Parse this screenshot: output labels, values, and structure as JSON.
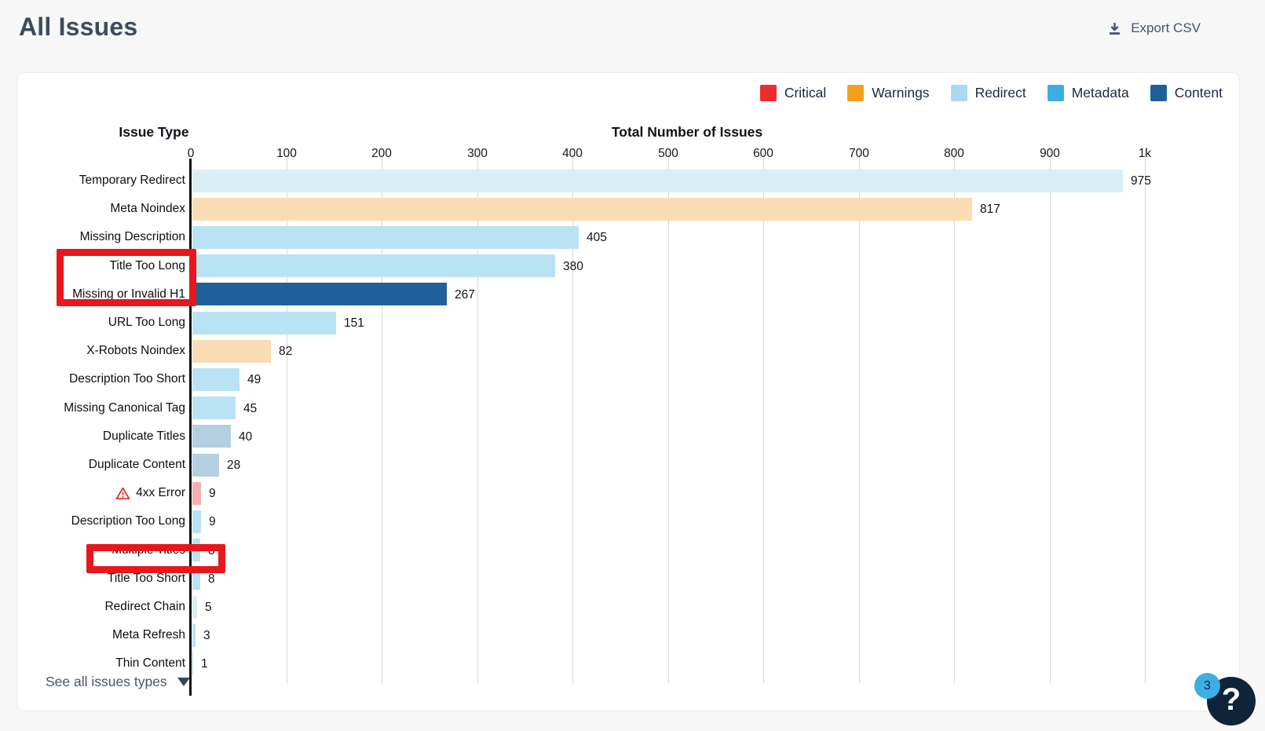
{
  "page": {
    "title": "All Issues"
  },
  "toolbar": {
    "export_label": "Export CSV"
  },
  "footer": {
    "see_all_label": "See all issues types"
  },
  "help": {
    "icon": "?",
    "badge_count": "3"
  },
  "chart_data": {
    "type": "bar",
    "orientation": "horizontal",
    "ylabel": "Issue Type",
    "xlabel": "Total Number of Issues",
    "xlim": [
      0,
      1000
    ],
    "xticks": [
      "0",
      "100",
      "200",
      "300",
      "400",
      "500",
      "600",
      "700",
      "800",
      "900",
      "1k"
    ],
    "grid": "vertical",
    "legend_position": "top-right",
    "legend": [
      {
        "label": "Critical",
        "color": "#ee2c2f"
      },
      {
        "label": "Warnings",
        "color": "#f4a01d"
      },
      {
        "label": "Redirect",
        "color": "#a8d9ef"
      },
      {
        "label": "Metadata",
        "color": "#3daee3"
      },
      {
        "label": "Content",
        "color": "#20609a"
      }
    ],
    "categories": [
      "Temporary Redirect",
      "Meta Noindex",
      "Missing Description",
      "Title Too Long",
      "Missing or Invalid H1",
      "URL Too Long",
      "X-Robots Noindex",
      "Description Too Short",
      "Missing Canonical Tag",
      "Duplicate Titles",
      "Duplicate Content",
      "4xx Error",
      "Description Too Long",
      "Multiple Titles",
      "Title Too Short",
      "Redirect Chain",
      "Meta Refresh",
      "Thin Content"
    ],
    "values": [
      975,
      817,
      405,
      380,
      267,
      151,
      82,
      49,
      45,
      40,
      28,
      9,
      9,
      8,
      8,
      5,
      3,
      1
    ],
    "rows": [
      {
        "label": "Temporary Redirect",
        "value": 975,
        "display": "975",
        "color": "#daeef8",
        "category": "Redirect",
        "warning_icon": false
      },
      {
        "label": "Meta Noindex",
        "value": 817,
        "display": "817",
        "color": "#fadcb4",
        "category": "Warnings",
        "warning_icon": false
      },
      {
        "label": "Missing Description",
        "value": 405,
        "display": "405",
        "color": "#b9e2f5",
        "category": "Metadata",
        "warning_icon": false
      },
      {
        "label": "Title Too Long",
        "value": 380,
        "display": "380",
        "color": "#b9e2f5",
        "category": "Metadata",
        "warning_icon": false
      },
      {
        "label": "Missing or Invalid H1",
        "value": 267,
        "display": "267",
        "color": "#20609a",
        "category": "Content",
        "warning_icon": false
      },
      {
        "label": "URL Too Long",
        "value": 151,
        "display": "151",
        "color": "#b9e2f5",
        "category": "Metadata",
        "warning_icon": false
      },
      {
        "label": "X-Robots Noindex",
        "value": 82,
        "display": "82",
        "color": "#fadcb4",
        "category": "Warnings",
        "warning_icon": false
      },
      {
        "label": "Description Too Short",
        "value": 49,
        "display": "49",
        "color": "#b9e2f5",
        "category": "Metadata",
        "warning_icon": false
      },
      {
        "label": "Missing Canonical Tag",
        "value": 45,
        "display": "45",
        "color": "#b9e2f5",
        "category": "Metadata",
        "warning_icon": false
      },
      {
        "label": "Duplicate Titles",
        "value": 40,
        "display": "40",
        "color": "#b3cfe0",
        "category": "Content",
        "warning_icon": false
      },
      {
        "label": "Duplicate Content",
        "value": 28,
        "display": "28",
        "color": "#b3cfe0",
        "category": "Content",
        "warning_icon": false
      },
      {
        "label": "4xx Error",
        "value": 9,
        "display": "9",
        "color": "#f3afb3",
        "category": "Critical",
        "warning_icon": true
      },
      {
        "label": "Description Too Long",
        "value": 9,
        "display": "9",
        "color": "#b9e2f5",
        "category": "Metadata",
        "warning_icon": false
      },
      {
        "label": "Multiple Titles",
        "value": 8,
        "display": "8",
        "color": "#b9e2f5",
        "category": "Metadata",
        "warning_icon": false
      },
      {
        "label": "Title Too Short",
        "value": 8,
        "display": "8",
        "color": "#b9e2f5",
        "category": "Metadata",
        "warning_icon": false
      },
      {
        "label": "Redirect Chain",
        "value": 5,
        "display": "5",
        "color": "#daeef8",
        "category": "Redirect",
        "warning_icon": false
      },
      {
        "label": "Meta Refresh",
        "value": 3,
        "display": "3",
        "color": "#b9e2f5",
        "category": "Redirect",
        "warning_icon": false
      },
      {
        "label": "Thin Content",
        "value": 1,
        "display": "1",
        "color": "#b3cfe0",
        "category": "Content",
        "warning_icon": false
      }
    ],
    "annotations": [
      {
        "type": "highlight-box",
        "around": [
          "Title Too Long",
          "Missing or Invalid H1"
        ],
        "color": "#e8161d"
      },
      {
        "type": "highlight-box",
        "around": [
          "Multiple Titles"
        ],
        "color": "#e8161d"
      }
    ]
  }
}
